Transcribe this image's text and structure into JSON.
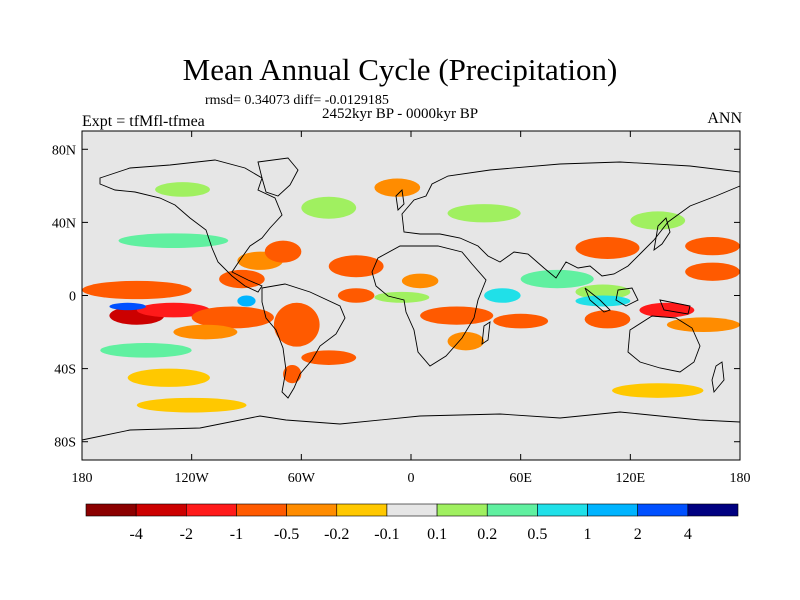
{
  "chart_data": {
    "type": "heatmap",
    "title": "Mean Annual Cycle (Precipitation)",
    "stats_line": "rmsd= 0.34073 diff= -0.0129185",
    "period": "2452kyr BP - 0000kyr BP",
    "left_label": "Expt = tfMfl-tfmea",
    "right_label": "ANN",
    "xlim": [
      -180,
      180
    ],
    "ylim": [
      -90,
      90
    ],
    "x_ticks": [
      {
        "value": -180,
        "label": "180"
      },
      {
        "value": -120,
        "label": "120W"
      },
      {
        "value": -60,
        "label": "60W"
      },
      {
        "value": 0,
        "label": "0"
      },
      {
        "value": 60,
        "label": "60E"
      },
      {
        "value": 120,
        "label": "120E"
      },
      {
        "value": 180,
        "label": "180"
      }
    ],
    "y_ticks": [
      {
        "value": 80,
        "label": "80N"
      },
      {
        "value": 40,
        "label": "40N"
      },
      {
        "value": 0,
        "label": "0"
      },
      {
        "value": -40,
        "label": "40S"
      },
      {
        "value": -80,
        "label": "80S"
      }
    ],
    "colorbar": {
      "levels": [
        "-4",
        "-2",
        "-1",
        "-0.5",
        "-0.2",
        "-0.1",
        "0.1",
        "0.2",
        "0.5",
        "1",
        "2",
        "4"
      ],
      "colors": [
        "#8b0000",
        "#cc0000",
        "#ff1a1a",
        "#ff5a00",
        "#ff8c00",
        "#ffc800",
        "#e6e6e6",
        "#a0f060",
        "#60f0a0",
        "#20e0e8",
        "#00b4ff",
        "#0050ff",
        "#000080"
      ]
    },
    "background_color": "#e6e6e6",
    "anomaly_regions": [
      {
        "lon": [
          -180,
          -120
        ],
        "lat": [
          -2,
          8
        ],
        "level": 3
      },
      {
        "lon": [
          -165,
          -135
        ],
        "lat": [
          -16,
          -6
        ],
        "level": 1
      },
      {
        "lon": [
          -150,
          -110
        ],
        "lat": [
          -12,
          -4
        ],
        "level": 2
      },
      {
        "lon": [
          -120,
          -75
        ],
        "lat": [
          -18,
          -6
        ],
        "level": 3
      },
      {
        "lon": [
          -130,
          -95
        ],
        "lat": [
          -24,
          -16
        ],
        "level": 4
      },
      {
        "lon": [
          -105,
          -80
        ],
        "lat": [
          4,
          14
        ],
        "level": 3
      },
      {
        "lon": [
          -95,
          -70
        ],
        "lat": [
          14,
          24
        ],
        "level": 4
      },
      {
        "lon": [
          -80,
          -60
        ],
        "lat": [
          18,
          30
        ],
        "level": 3
      },
      {
        "lon": [
          -45,
          -15
        ],
        "lat": [
          10,
          22
        ],
        "level": 3
      },
      {
        "lon": [
          -40,
          -20
        ],
        "lat": [
          -4,
          4
        ],
        "level": 3
      },
      {
        "lon": [
          -75,
          -50
        ],
        "lat": [
          -28,
          -4
        ],
        "level": 3
      },
      {
        "lon": [
          -70,
          -60
        ],
        "lat": [
          -48,
          -38
        ],
        "level": 3
      },
      {
        "lon": [
          -60,
          -30
        ],
        "lat": [
          -38,
          -30
        ],
        "level": 3
      },
      {
        "lon": [
          5,
          45
        ],
        "lat": [
          -16,
          -6
        ],
        "level": 3
      },
      {
        "lon": [
          20,
          40
        ],
        "lat": [
          -30,
          -20
        ],
        "level": 4
      },
      {
        "lon": [
          45,
          75
        ],
        "lat": [
          -18,
          -10
        ],
        "level": 3
      },
      {
        "lon": [
          -5,
          15
        ],
        "lat": [
          4,
          12
        ],
        "level": 4
      },
      {
        "lon": [
          150,
          180
        ],
        "lat": [
          8,
          18
        ],
        "level": 3
      },
      {
        "lon": [
          125,
          155
        ],
        "lat": [
          -12,
          -4
        ],
        "level": 2
      },
      {
        "lon": [
          95,
          120
        ],
        "lat": [
          -18,
          -8
        ],
        "level": 3
      },
      {
        "lon": [
          140,
          180
        ],
        "lat": [
          -20,
          -12
        ],
        "level": 4
      },
      {
        "lon": [
          90,
          125
        ],
        "lat": [
          20,
          32
        ],
        "level": 3
      },
      {
        "lon": [
          150,
          180
        ],
        "lat": [
          22,
          32
        ],
        "level": 3
      },
      {
        "lon": [
          -20,
          5
        ],
        "lat": [
          54,
          64
        ],
        "level": 4
      },
      {
        "lon": [
          -155,
          -110
        ],
        "lat": [
          -50,
          -40
        ],
        "level": 5
      },
      {
        "lon": [
          -150,
          -90
        ],
        "lat": [
          -64,
          -56
        ],
        "level": 5
      },
      {
        "lon": [
          110,
          160
        ],
        "lat": [
          -56,
          -48
        ],
        "level": 5
      },
      {
        "lon": [
          -180,
          -140
        ],
        "lat": [
          36,
          48
        ],
        "level": 6
      },
      {
        "lon": [
          -160,
          -100
        ],
        "lat": [
          26,
          34
        ],
        "level": 8
      },
      {
        "lon": [
          -60,
          -30
        ],
        "lat": [
          42,
          54
        ],
        "level": 7
      },
      {
        "lon": [
          60,
          100
        ],
        "lat": [
          4,
          14
        ],
        "level": 8
      },
      {
        "lon": [
          90,
          120
        ],
        "lat": [
          -2,
          6
        ],
        "level": 7
      },
      {
        "lon": [
          -20,
          10
        ],
        "lat": [
          -4,
          2
        ],
        "level": 7
      },
      {
        "lon": [
          40,
          60
        ],
        "lat": [
          -4,
          4
        ],
        "level": 9
      },
      {
        "lon": [
          90,
          120
        ],
        "lat": [
          -6,
          0
        ],
        "level": 9
      },
      {
        "lon": [
          -95,
          -85
        ],
        "lat": [
          -6,
          0
        ],
        "level": 10
      },
      {
        "lon": [
          -165,
          -145
        ],
        "lat": [
          -8,
          -4
        ],
        "level": 11
      },
      {
        "lon": [
          -140,
          -110
        ],
        "lat": [
          54,
          62
        ],
        "level": 7
      },
      {
        "lon": [
          20,
          60
        ],
        "lat": [
          40,
          50
        ],
        "level": 7
      },
      {
        "lon": [
          -170,
          -120
        ],
        "lat": [
          -34,
          -26
        ],
        "level": 8
      },
      {
        "lon": [
          120,
          150
        ],
        "lat": [
          36,
          46
        ],
        "level": 7
      }
    ]
  }
}
